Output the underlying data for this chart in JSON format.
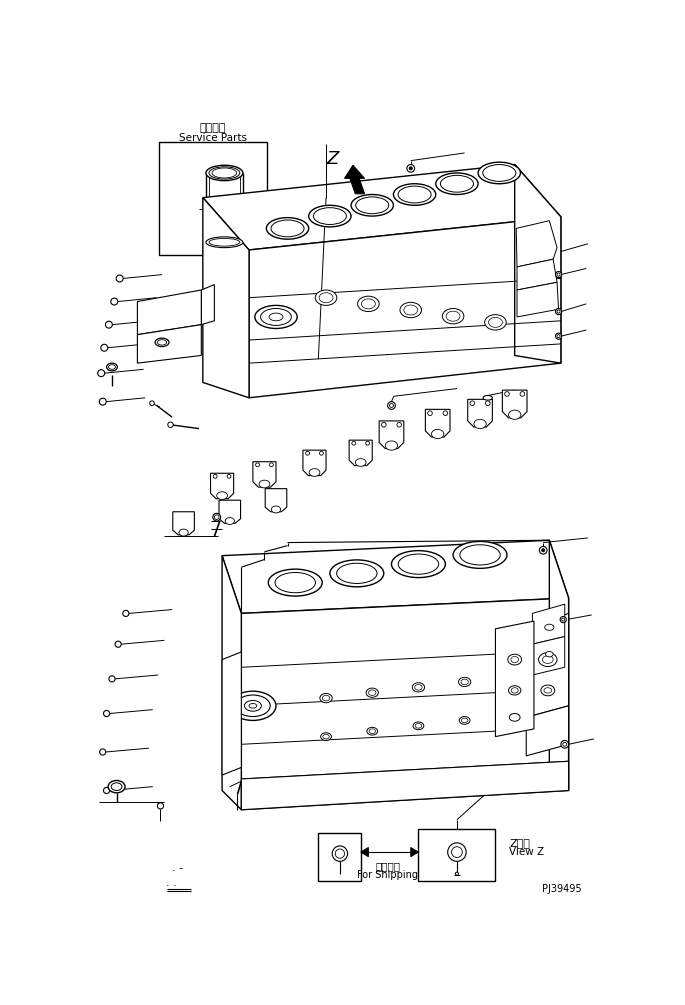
{
  "bg": "#ffffff",
  "lc": "#000000",
  "fig_w": 6.85,
  "fig_h": 10.05,
  "dpi": 100,
  "labels": {
    "jp_service": "補給専用",
    "en_service": "Service Parts",
    "jp_transport": "運搜部品",
    "en_transport": "For Shipping",
    "view_jp": "Z　視",
    "view_en": "View Z",
    "part_num": "PJ39495"
  }
}
